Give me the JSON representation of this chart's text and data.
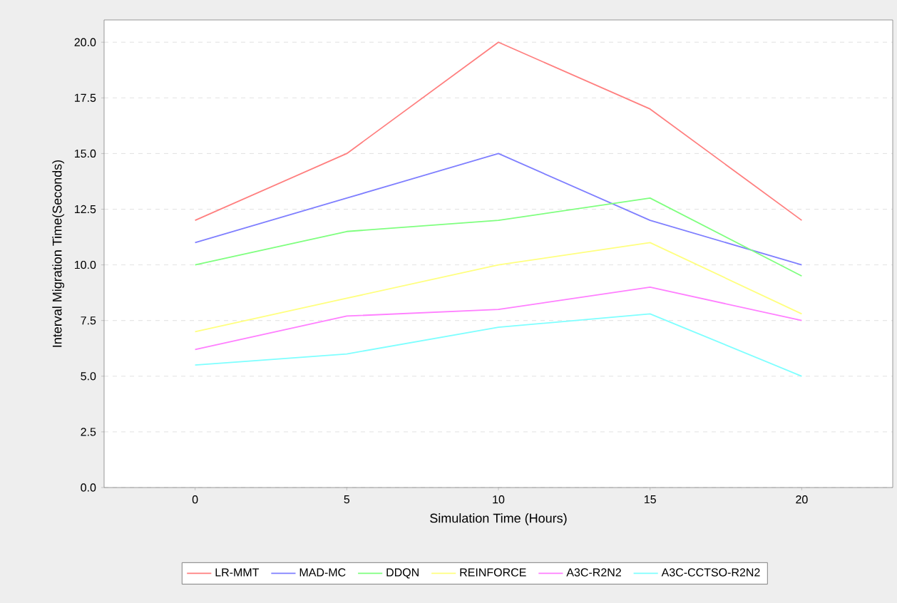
{
  "chart_data": {
    "type": "line",
    "xlabel": "Simulation Time (Hours)",
    "ylabel": "Interval Migration Time(Seconds)",
    "x": [
      0,
      5,
      10,
      15,
      20
    ],
    "series": [
      {
        "name": "LR-MMT",
        "color": "#ff7f7f",
        "values": [
          12,
          15,
          20,
          17,
          12
        ]
      },
      {
        "name": "MAD-MC",
        "color": "#7f7fff",
        "values": [
          11,
          13,
          15,
          12,
          10
        ]
      },
      {
        "name": "DDQN",
        "color": "#7fff7f",
        "values": [
          10,
          11.5,
          12,
          13,
          9.5
        ]
      },
      {
        "name": "REINFORCE",
        "color": "#ffff7f",
        "values": [
          7,
          8.5,
          10,
          11,
          7.8
        ]
      },
      {
        "name": "A3C-R2N2",
        "color": "#ff7fff",
        "values": [
          6.2,
          7.7,
          8,
          9,
          7.5
        ]
      },
      {
        "name": "A3C-CCTSO-R2N2",
        "color": "#7fffff",
        "values": [
          5.5,
          6,
          7.2,
          7.8,
          5
        ]
      }
    ],
    "xlim": [
      -3,
      23
    ],
    "xticks": [
      0,
      5,
      10,
      15,
      20
    ],
    "ylim": [
      0,
      21
    ],
    "yticks": [
      {
        "value": 0,
        "label": "0.0"
      },
      {
        "value": 2.5,
        "label": "2.5"
      },
      {
        "value": 5,
        "label": "5.0"
      },
      {
        "value": 7.5,
        "label": "7.5"
      },
      {
        "value": 10,
        "label": "10.0"
      },
      {
        "value": 12.5,
        "label": "12.5"
      },
      {
        "value": 15,
        "label": "15.0"
      },
      {
        "value": 17.5,
        "label": "17.5"
      },
      {
        "value": 20,
        "label": "20.0"
      }
    ],
    "grid": "y",
    "legend": "bottom",
    "marker": "none",
    "line_style": "solid"
  }
}
